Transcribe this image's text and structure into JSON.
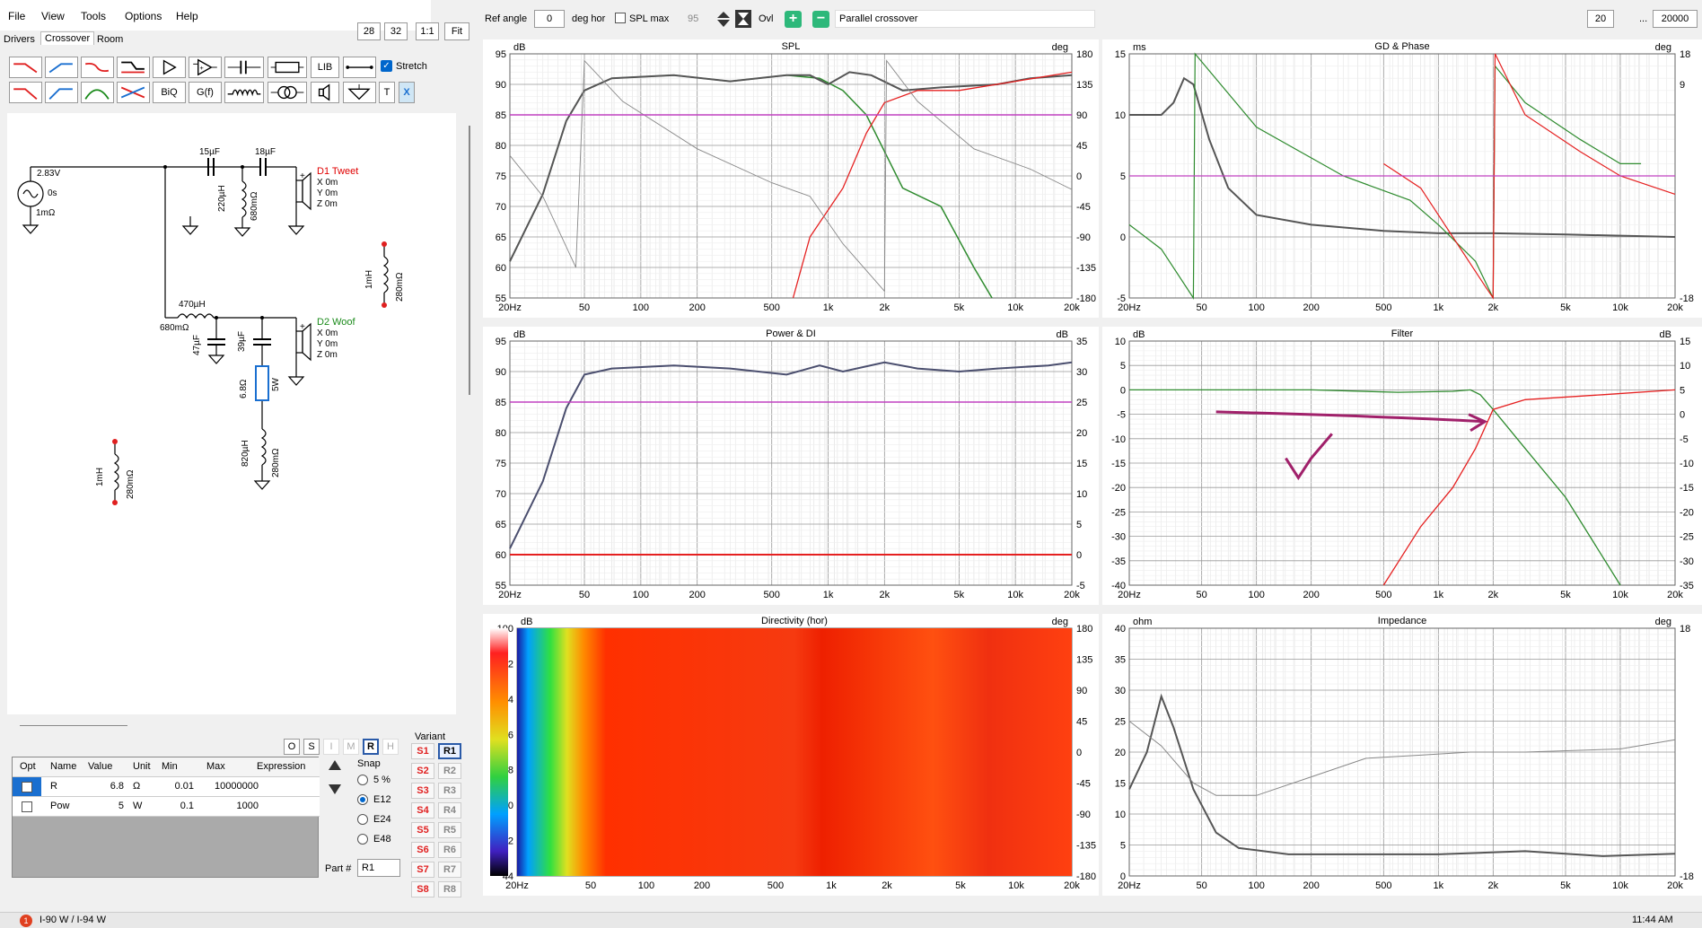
{
  "menu": [
    "File",
    "View",
    "Tools",
    "Options",
    "Help"
  ],
  "tabs": [
    "Drivers",
    "Crossover",
    "Room"
  ],
  "top_toolbar": {
    "n1": "28",
    "n2": "32",
    "ratio": "1:1",
    "fit": "Fit",
    "ref_angle_label": "Ref angle",
    "ref_angle_value": "0",
    "deg_hor": "deg hor",
    "spl_max_label": "SPL max",
    "spl_max_value": "95",
    "ovl_label": "Ovl",
    "crossover_name": "Parallel crossover",
    "freq_min": "20",
    "freq_sep": "...",
    "freq_max": "20000"
  },
  "crossover_toolbar": {
    "lib": "LIB",
    "stretch": "Stretch",
    "biq": "BiQ",
    "gf": "G(f)",
    "t": "T",
    "x": "X"
  },
  "schematic": {
    "source_v": "2.83V",
    "source_t": "0s",
    "source_r": "1mΩ",
    "c1": "15µF",
    "c2": "18µF",
    "l1": "220µH",
    "l1r": "680mΩ",
    "tweet": "D1 Tweet",
    "x0": "X 0m",
    "y0": "Y 0m",
    "z0": "Z 0m",
    "lw": "470µH",
    "lwr": "680mΩ",
    "cw1": "47µF",
    "cw2": "39µF",
    "woof": "D2 Woof",
    "rz": "6.8Ω",
    "rzp": "5W",
    "lz": "820µH",
    "lzr": "280mΩ",
    "spare1": "1mH",
    "spare1r": "280mΩ",
    "spare2": "1mH",
    "spare2r": "280mΩ"
  },
  "view_buttons": [
    "O",
    "S",
    "I",
    "M",
    "R",
    "H"
  ],
  "table": {
    "headers": [
      "Opt",
      "Name",
      "Value",
      "Unit",
      "Min",
      "Max",
      "Expression"
    ],
    "rows": [
      {
        "name": "R",
        "value": "6.8",
        "unit": "Ω",
        "min": "0.01",
        "max": "10000000"
      },
      {
        "name": "Pow",
        "value": "5",
        "unit": "W",
        "min": "0.1",
        "max": "1000"
      }
    ]
  },
  "snap": {
    "label": "Snap",
    "options": [
      "5 %",
      "E12",
      "E24",
      "E48"
    ],
    "selected": "E12"
  },
  "variant": {
    "label": "Variant",
    "s": [
      "S1",
      "S2",
      "S3",
      "S4",
      "S5",
      "S6",
      "S7",
      "S8"
    ],
    "r": [
      "R1",
      "R2",
      "R3",
      "R4",
      "R5",
      "R6",
      "R7",
      "R8"
    ],
    "active": "R1"
  },
  "part": {
    "label": "Part #",
    "value": "R1"
  },
  "freq_ticks": [
    "20Hz",
    "50",
    "100",
    "200",
    "500",
    "1k",
    "2k",
    "5k",
    "10k",
    "20k"
  ],
  "graphs": {
    "spl": {
      "title": "SPL",
      "lunit": "dB",
      "runit": "deg",
      "left": [
        "95",
        "90",
        "85",
        "80",
        "75",
        "70",
        "65",
        "60",
        "55"
      ],
      "right": [
        "180",
        "135",
        "90",
        "45",
        "0",
        "-45",
        "-90",
        "-135",
        "-180"
      ]
    },
    "gd": {
      "title": "GD & Phase",
      "lunit": "ms",
      "runit": "deg",
      "left": [
        "15",
        "10",
        "5",
        "0",
        "-5"
      ],
      "right": [
        "18",
        "9",
        "",
        "",
        "",
        "",
        "",
        "",
        "-18"
      ]
    },
    "power": {
      "title": "Power & DI",
      "lunit": "dB",
      "runit": "dB",
      "left": [
        "95",
        "90",
        "85",
        "80",
        "75",
        "70",
        "65",
        "60",
        "55"
      ],
      "right": [
        "35",
        "30",
        "25",
        "20",
        "15",
        "10",
        "5",
        "0",
        "-5"
      ]
    },
    "filter": {
      "title": "Filter",
      "lunit": "dB",
      "runit": "dB",
      "left": [
        "10",
        "5",
        "0",
        "-5",
        "-10",
        "-15",
        "-20",
        "-25",
        "-30",
        "-35",
        "-40"
      ],
      "right": [
        "15",
        "10",
        "5",
        "0",
        "-5",
        "-10",
        "-15",
        "-20",
        "-25",
        "-30",
        "-35"
      ]
    },
    "directivity": {
      "title": "Directivity (hor)",
      "lunit": "dB",
      "runit": "deg",
      "left": [
        "100",
        "92",
        "84",
        "76",
        "68",
        "60",
        "52",
        "44"
      ],
      "right": [
        "180",
        "135",
        "90",
        "45",
        "0",
        "-45",
        "-90",
        "-135",
        "-180"
      ]
    },
    "impedance": {
      "title": "Impedance",
      "lunit": "ohm",
      "runit": "deg",
      "left": [
        "40",
        "35",
        "30",
        "25",
        "20",
        "15",
        "10",
        "5",
        "0"
      ],
      "right": [
        "18",
        "",
        "",
        "",
        "",
        "",
        "",
        "",
        "-18"
      ]
    }
  },
  "status": {
    "text": "I-90 W / I-94 W",
    "time": "11:44 AM"
  },
  "colors": {
    "green": "#2e8b2e",
    "red": "#e52020",
    "magenta": "#c040c0",
    "darkgray": "#555",
    "navy": "#4a4e6e"
  }
}
